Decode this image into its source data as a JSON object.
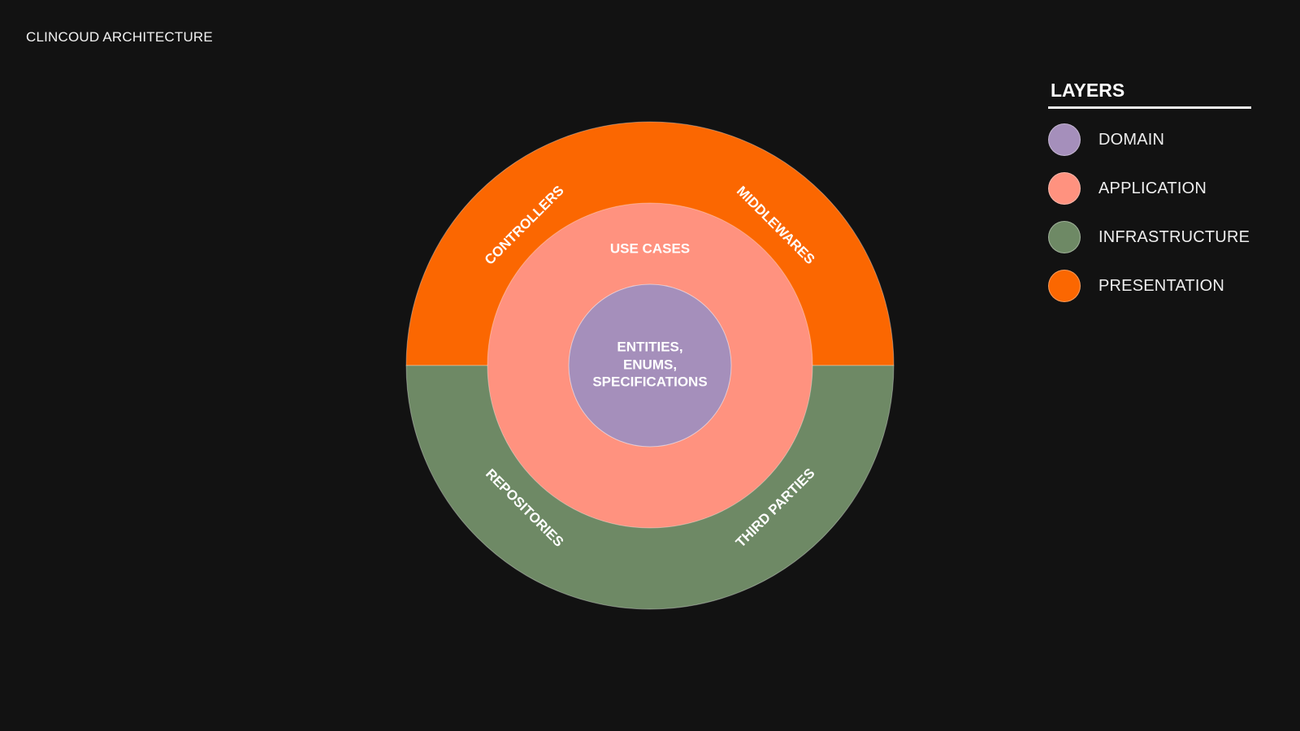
{
  "title": "CLINCOUD ARCHITECTURE",
  "legend": {
    "title": "LAYERS",
    "items": [
      {
        "label": "DOMAIN",
        "color": "#A58FBB"
      },
      {
        "label": "APPLICATION",
        "color": "#FF927F"
      },
      {
        "label": "INFRASTRUCTURE",
        "color": "#6E8965"
      },
      {
        "label": "PRESENTATION",
        "color": "#FB6701"
      }
    ]
  },
  "diagram": {
    "core": {
      "lines": [
        "ENTITIES,",
        "ENUMS,",
        "SPECIFICATIONS"
      ],
      "color": "#A58FBB"
    },
    "middle": {
      "label": "USE CASES",
      "color": "#FF927F"
    },
    "outer_top": {
      "color": "#FB6701",
      "labels": [
        "CONTROLLERS",
        "MIDDLEWARES"
      ]
    },
    "outer_bottom": {
      "color": "#6E8965",
      "labels": [
        "REPOSITORIES",
        "THIRD PARTIES"
      ]
    }
  }
}
